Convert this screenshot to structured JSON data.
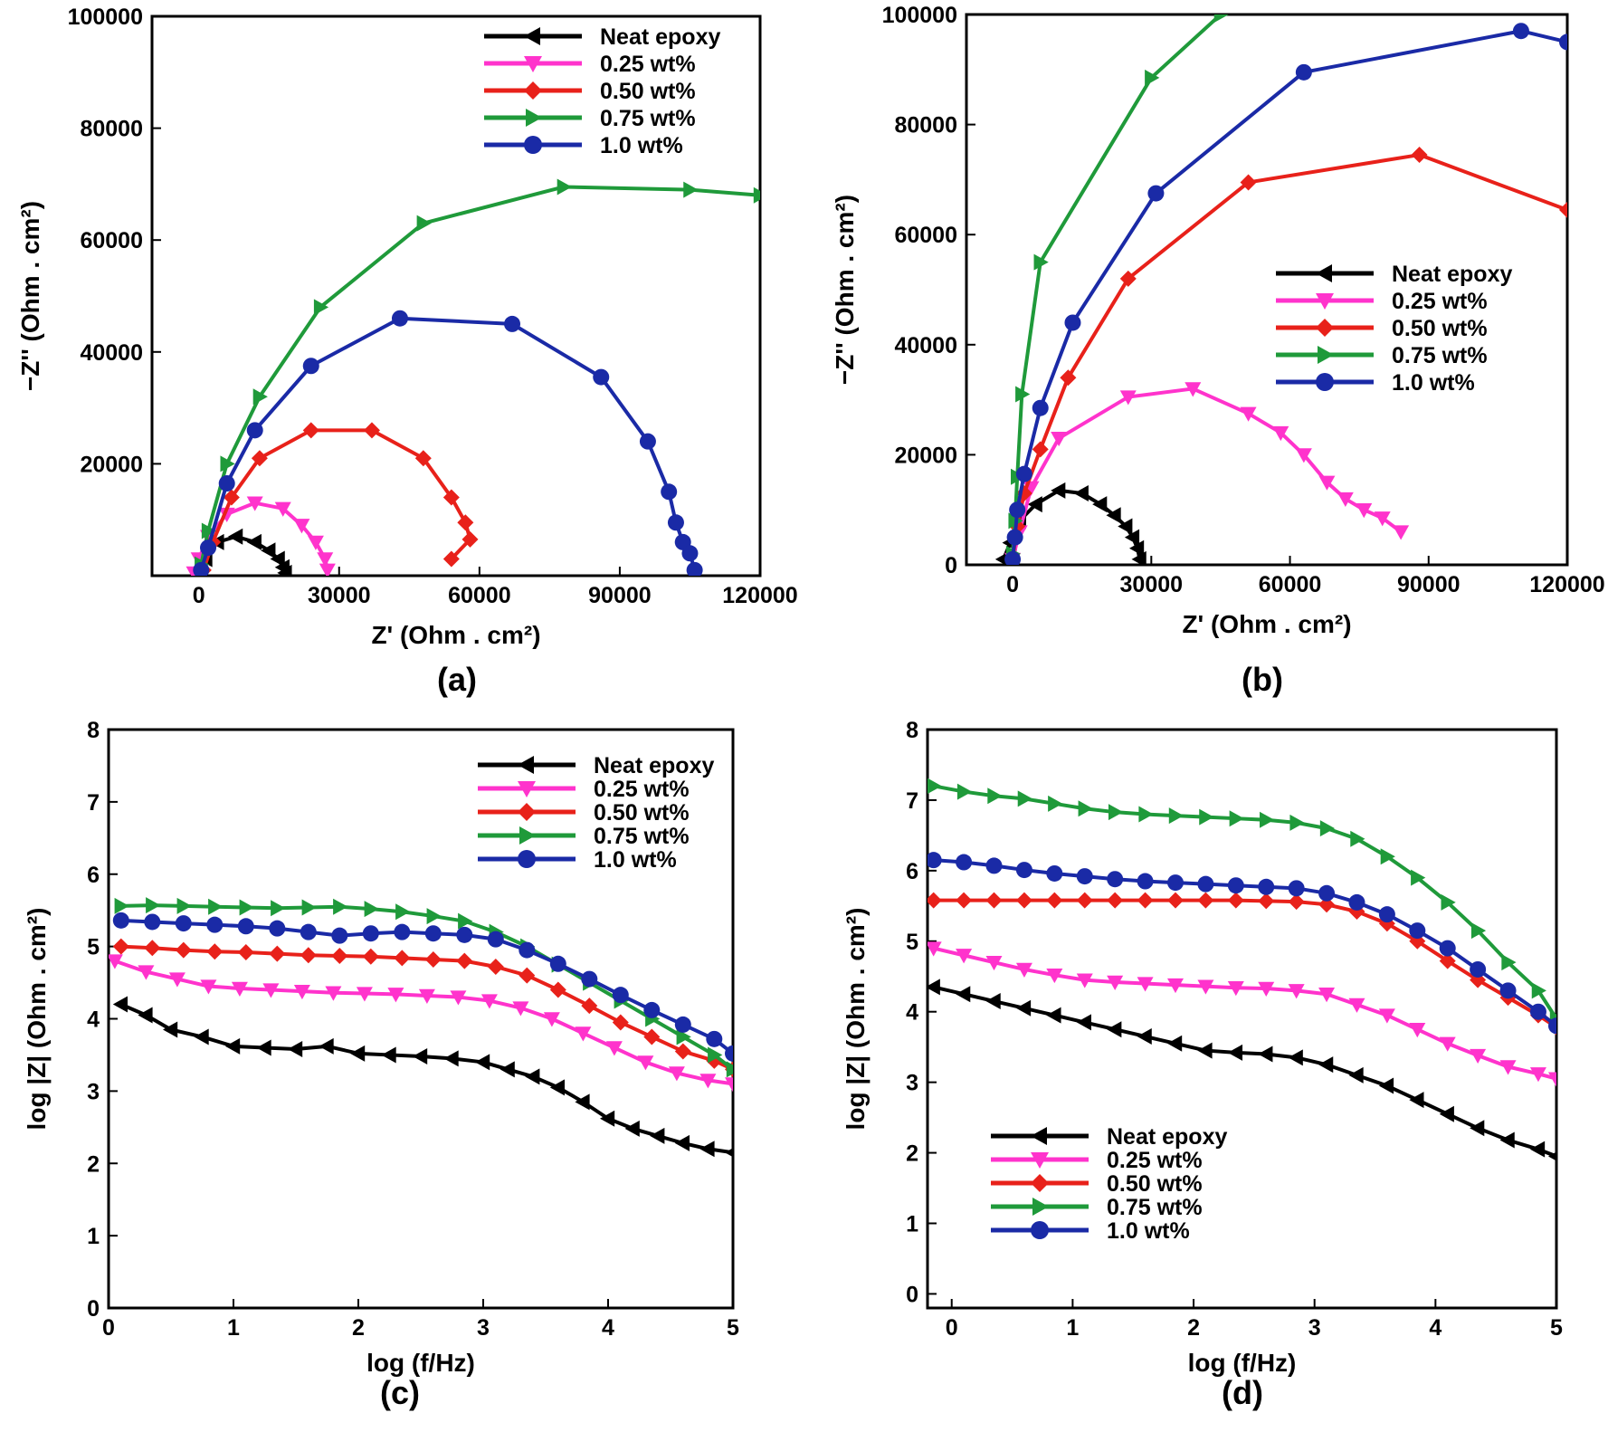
{
  "colors": {
    "Neat epoxy": "#000000",
    "0.25 wt%": "#ff33cc",
    "0.50 wt%": "#e8211a",
    "0.75 wt%": "#1f9a3a",
    "1.0 wt%": "#1a2aa6"
  },
  "markers": {
    "Neat epoxy": "triangle-left",
    "0.25 wt%": "triangle-down",
    "0.50 wt%": "diamond",
    "0.75 wt%": "triangle-right",
    "1.0 wt%": "circle"
  },
  "chart_data": [
    {
      "panel_label": "(a)",
      "type": "scatter",
      "xlabel": "Z' (Ohm . cm²)",
      "ylabel": "−Z'' (Ohm . cm²)",
      "xlim": [
        -10000,
        120000
      ],
      "ylim": [
        0,
        100000
      ],
      "xticks": [
        0,
        30000,
        60000,
        90000,
        120000
      ],
      "xtick_labels": [
        "0",
        "30000",
        "60000",
        "90000",
        "120000"
      ],
      "yticks": [
        20000,
        40000,
        60000,
        80000,
        100000
      ],
      "ytick_labels": [
        "20000",
        "40000",
        "60000",
        "80000",
        "100000"
      ],
      "legend_position": "top-right",
      "series": [
        {
          "name": "Neat epoxy",
          "x": [
            0,
            1500,
            4000,
            8000,
            12000,
            15000,
            17000,
            18000,
            18500
          ],
          "y": [
            500,
            3000,
            6000,
            7000,
            6000,
            4500,
            3000,
            1500,
            500
          ]
        },
        {
          "name": "0.25 wt%",
          "x": [
            -1000,
            0,
            2000,
            6000,
            12000,
            18000,
            22000,
            25000,
            27000,
            27500
          ],
          "y": [
            500,
            3000,
            7000,
            11000,
            13000,
            12000,
            9000,
            6000,
            3000,
            1000
          ]
        },
        {
          "name": "0.50 wt%",
          "x": [
            1000,
            3000,
            7000,
            13000,
            24000,
            37000,
            48000,
            54000,
            57000,
            58000,
            54000
          ],
          "y": [
            1000,
            6000,
            14000,
            21000,
            26000,
            26000,
            21000,
            14000,
            9500,
            6500,
            3000
          ]
        },
        {
          "name": "0.75 wt%",
          "x": [
            500,
            2000,
            6000,
            13000,
            26000,
            48000,
            78000,
            105000,
            120000
          ],
          "y": [
            2000,
            8000,
            20000,
            32000,
            48000,
            63000,
            69500,
            69000,
            68000
          ]
        },
        {
          "name": "1.0 wt%",
          "x": [
            500,
            2000,
            6000,
            12000,
            24000,
            43000,
            67000,
            86000,
            96000,
            100500,
            102000,
            103500,
            105000,
            106000
          ],
          "y": [
            1000,
            5000,
            16500,
            26000,
            37500,
            46000,
            45000,
            35500,
            24000,
            15000,
            9500,
            6000,
            4000,
            1000
          ]
        }
      ]
    },
    {
      "panel_label": "(b)",
      "type": "scatter",
      "xlabel": "Z' (Ohm . cm²)",
      "ylabel": "−Z'' (Ohm . cm²)",
      "xlim": [
        -10000,
        120000
      ],
      "ylim": [
        0,
        100000
      ],
      "xticks": [
        0,
        30000,
        60000,
        90000,
        120000
      ],
      "xtick_labels": [
        "0",
        "30000",
        "60000",
        "90000",
        "120000"
      ],
      "yticks": [
        0,
        20000,
        40000,
        60000,
        80000,
        100000
      ],
      "ytick_labels": [
        "0",
        "20000",
        "40000",
        "60000",
        "80000",
        "100000"
      ],
      "legend_position": "center-right",
      "series": [
        {
          "name": "Neat epoxy",
          "x": [
            -2000,
            -500,
            1500,
            5000,
            10000,
            15000,
            19000,
            22000,
            24500,
            26000,
            27000,
            27500
          ],
          "y": [
            1000,
            4000,
            8000,
            11000,
            13500,
            13000,
            11000,
            9000,
            7000,
            5000,
            3000,
            1000
          ]
        },
        {
          "name": "0.25 wt%",
          "x": [
            0,
            1500,
            4000,
            10000,
            25000,
            39000,
            51000,
            58000,
            63000,
            68000,
            72000,
            76000,
            80000,
            84000
          ],
          "y": [
            1000,
            6000,
            14000,
            23000,
            30500,
            32000,
            27500,
            24000,
            20000,
            15000,
            12000,
            10000,
            8500,
            6000
          ]
        },
        {
          "name": "0.50 wt%",
          "x": [
            0,
            1000,
            2500,
            6000,
            12000,
            25000,
            51000,
            88000,
            120000
          ],
          "y": [
            1000,
            7000,
            13000,
            21000,
            34000,
            52000,
            69500,
            74500,
            64500
          ]
        },
        {
          "name": "0.75 wt%",
          "x": [
            0,
            500,
            1000,
            2000,
            6000,
            30000,
            45000
          ],
          "y": [
            2000,
            8000,
            16000,
            31000,
            55000,
            88500,
            100000
          ]
        },
        {
          "name": "1.0 wt%",
          "x": [
            0,
            500,
            1000,
            2500,
            6000,
            13000,
            31000,
            63000,
            110000,
            120000
          ],
          "y": [
            1000,
            5000,
            10000,
            16500,
            28500,
            44000,
            67500,
            89500,
            97000,
            95000
          ]
        }
      ]
    },
    {
      "panel_label": "(c)",
      "type": "line",
      "xlabel": "log (f/Hz)",
      "ylabel": "log |Z| (Ohm . cm²)",
      "xlim": [
        0,
        5
      ],
      "ylim": [
        0,
        8
      ],
      "xticks": [
        0,
        1,
        2,
        3,
        4,
        5
      ],
      "xtick_labels": [
        "0",
        "1",
        "2",
        "3",
        "4",
        "5"
      ],
      "yticks": [
        0,
        1,
        2,
        3,
        4,
        5,
        6,
        7,
        8
      ],
      "ytick_labels": [
        "0",
        "1",
        "2",
        "3",
        "4",
        "5",
        "6",
        "7",
        "8"
      ],
      "legend_position": "top-right",
      "series": [
        {
          "name": "Neat epoxy",
          "x": [
            0.1,
            0.3,
            0.5,
            0.75,
            1.0,
            1.25,
            1.5,
            1.75,
            2.0,
            2.25,
            2.5,
            2.75,
            3.0,
            3.2,
            3.4,
            3.6,
            3.8,
            4.0,
            4.2,
            4.4,
            4.6,
            4.8,
            5.0
          ],
          "y": [
            4.2,
            4.05,
            3.85,
            3.75,
            3.62,
            3.6,
            3.58,
            3.62,
            3.52,
            3.5,
            3.48,
            3.45,
            3.4,
            3.3,
            3.2,
            3.05,
            2.85,
            2.62,
            2.48,
            2.38,
            2.28,
            2.2,
            2.15
          ]
        },
        {
          "name": "0.25 wt%",
          "x": [
            0.05,
            0.3,
            0.55,
            0.8,
            1.05,
            1.3,
            1.55,
            1.8,
            2.05,
            2.3,
            2.55,
            2.8,
            3.05,
            3.3,
            3.55,
            3.8,
            4.05,
            4.3,
            4.55,
            4.8,
            5.0
          ],
          "y": [
            4.8,
            4.65,
            4.55,
            4.45,
            4.42,
            4.4,
            4.38,
            4.36,
            4.35,
            4.34,
            4.32,
            4.3,
            4.25,
            4.15,
            4.0,
            3.8,
            3.6,
            3.4,
            3.25,
            3.15,
            3.1
          ]
        },
        {
          "name": "0.50 wt%",
          "x": [
            0.1,
            0.35,
            0.6,
            0.85,
            1.1,
            1.35,
            1.6,
            1.85,
            2.1,
            2.35,
            2.6,
            2.85,
            3.1,
            3.35,
            3.6,
            3.85,
            4.1,
            4.35,
            4.6,
            4.85,
            5.0
          ],
          "y": [
            5.0,
            4.98,
            4.95,
            4.93,
            4.92,
            4.9,
            4.88,
            4.87,
            4.86,
            4.84,
            4.82,
            4.8,
            4.72,
            4.6,
            4.4,
            4.18,
            3.95,
            3.75,
            3.55,
            3.42,
            3.3
          ]
        },
        {
          "name": "0.75 wt%",
          "x": [
            0.1,
            0.35,
            0.6,
            0.85,
            1.1,
            1.35,
            1.6,
            1.85,
            2.1,
            2.35,
            2.6,
            2.85,
            3.1,
            3.35,
            3.6,
            3.85,
            4.1,
            4.35,
            4.6,
            4.85,
            5.0
          ],
          "y": [
            5.56,
            5.57,
            5.56,
            5.55,
            5.54,
            5.53,
            5.54,
            5.55,
            5.52,
            5.48,
            5.42,
            5.35,
            5.2,
            5.0,
            4.75,
            4.5,
            4.25,
            4.0,
            3.75,
            3.5,
            3.3
          ]
        },
        {
          "name": "1.0 wt%",
          "x": [
            0.1,
            0.35,
            0.6,
            0.85,
            1.1,
            1.35,
            1.6,
            1.85,
            2.1,
            2.35,
            2.6,
            2.85,
            3.1,
            3.35,
            3.6,
            3.85,
            4.1,
            4.35,
            4.6,
            4.85,
            5.0
          ],
          "y": [
            5.36,
            5.34,
            5.32,
            5.3,
            5.28,
            5.25,
            5.2,
            5.15,
            5.18,
            5.2,
            5.18,
            5.16,
            5.1,
            4.95,
            4.76,
            4.55,
            4.33,
            4.12,
            3.92,
            3.72,
            3.52
          ]
        }
      ]
    },
    {
      "panel_label": "(d)",
      "type": "line",
      "xlabel": "log (f/Hz)",
      "ylabel": "log |Z| (Ohm . cm²)",
      "xlim": [
        -0.2,
        5
      ],
      "ylim": [
        -0.2,
        8
      ],
      "xticks": [
        0,
        1,
        2,
        3,
        4,
        5
      ],
      "xtick_labels": [
        "0",
        "1",
        "2",
        "3",
        "4",
        "5"
      ],
      "yticks": [
        0,
        1,
        2,
        3,
        4,
        5,
        6,
        7,
        8
      ],
      "ytick_labels": [
        "0",
        "1",
        "2",
        "3",
        "4",
        "5",
        "6",
        "7",
        "8"
      ],
      "legend_position": "bottom-left",
      "series": [
        {
          "name": "Neat epoxy",
          "x": [
            -0.15,
            0.1,
            0.35,
            0.6,
            0.85,
            1.1,
            1.35,
            1.6,
            1.85,
            2.1,
            2.35,
            2.6,
            2.85,
            3.1,
            3.35,
            3.6,
            3.85,
            4.1,
            4.35,
            4.6,
            4.85,
            5.0
          ],
          "y": [
            4.35,
            4.25,
            4.15,
            4.05,
            3.95,
            3.85,
            3.75,
            3.65,
            3.55,
            3.45,
            3.42,
            3.4,
            3.35,
            3.25,
            3.1,
            2.95,
            2.75,
            2.55,
            2.35,
            2.18,
            2.05,
            1.95
          ]
        },
        {
          "name": "0.25 wt%",
          "x": [
            -0.15,
            0.1,
            0.35,
            0.6,
            0.85,
            1.1,
            1.35,
            1.6,
            1.85,
            2.1,
            2.35,
            2.6,
            2.85,
            3.1,
            3.35,
            3.6,
            3.85,
            4.1,
            4.35,
            4.6,
            4.85,
            5.0
          ],
          "y": [
            4.9,
            4.8,
            4.7,
            4.6,
            4.52,
            4.45,
            4.42,
            4.4,
            4.38,
            4.36,
            4.34,
            4.33,
            4.3,
            4.25,
            4.1,
            3.95,
            3.75,
            3.55,
            3.38,
            3.22,
            3.12,
            3.05
          ]
        },
        {
          "name": "0.50 wt%",
          "x": [
            -0.15,
            0.1,
            0.35,
            0.6,
            0.85,
            1.1,
            1.35,
            1.6,
            1.85,
            2.1,
            2.35,
            2.6,
            2.85,
            3.1,
            3.35,
            3.6,
            3.85,
            4.1,
            4.35,
            4.6,
            4.85,
            5.0
          ],
          "y": [
            5.58,
            5.58,
            5.58,
            5.58,
            5.58,
            5.58,
            5.58,
            5.58,
            5.58,
            5.58,
            5.58,
            5.57,
            5.56,
            5.52,
            5.42,
            5.25,
            5.0,
            4.72,
            4.45,
            4.2,
            3.95,
            3.78
          ]
        },
        {
          "name": "0.75 wt%",
          "x": [
            -0.15,
            0.1,
            0.35,
            0.6,
            0.85,
            1.1,
            1.35,
            1.6,
            1.85,
            2.1,
            2.35,
            2.6,
            2.85,
            3.1,
            3.35,
            3.6,
            3.85,
            4.1,
            4.35,
            4.6,
            4.85,
            5.0
          ],
          "y": [
            7.2,
            7.12,
            7.06,
            7.02,
            6.95,
            6.88,
            6.83,
            6.8,
            6.78,
            6.76,
            6.74,
            6.72,
            6.68,
            6.6,
            6.45,
            6.2,
            5.9,
            5.55,
            5.15,
            4.7,
            4.3,
            3.9
          ]
        },
        {
          "name": "1.0 wt%",
          "x": [
            -0.15,
            0.1,
            0.35,
            0.6,
            0.85,
            1.1,
            1.35,
            1.6,
            1.85,
            2.1,
            2.35,
            2.6,
            2.85,
            3.1,
            3.35,
            3.6,
            3.85,
            4.1,
            4.35,
            4.6,
            4.85,
            5.0
          ],
          "y": [
            6.15,
            6.12,
            6.07,
            6.01,
            5.96,
            5.92,
            5.88,
            5.85,
            5.83,
            5.81,
            5.79,
            5.77,
            5.75,
            5.68,
            5.55,
            5.38,
            5.15,
            4.9,
            4.6,
            4.3,
            4.0,
            3.8
          ]
        }
      ]
    }
  ]
}
